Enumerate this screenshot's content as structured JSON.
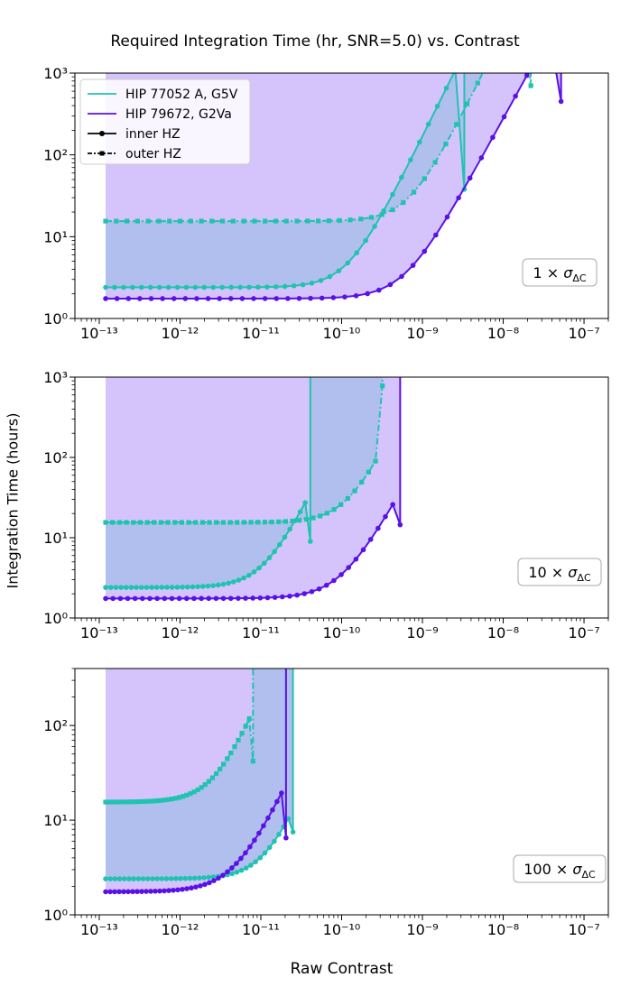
{
  "chart_data": {
    "type": "line",
    "title": "Required Integration Time (hr, SNR=5.0) vs. Contrast",
    "xlabel": "Raw Contrast",
    "ylabel": "Integration Time (hours)",
    "xscale": "log",
    "yscale": "log",
    "xlim": [
      5e-14,
      2e-07
    ],
    "xticks": [
      1e-13,
      1e-12,
      1e-11,
      1e-10,
      1e-09,
      1e-08,
      1e-07
    ],
    "xtick_labels": [
      "10⁻¹³",
      "10⁻¹²",
      "10⁻¹¹",
      "10⁻¹⁰",
      "10⁻⁹",
      "10⁻⁸",
      "10⁻⁷"
    ],
    "legend": {
      "placement": "top-left",
      "entries": [
        {
          "label": "HIP 77052 A, G5V",
          "color": "#20c3b0",
          "style": "solid"
        },
        {
          "label": "HIP 79672, G2Va",
          "color": "#5a10e8",
          "style": "solid"
        },
        {
          "label": "inner HZ",
          "color": "#000000",
          "style": "solid-dot"
        },
        {
          "label": "outer HZ",
          "color": "#000000",
          "style": "dashdot-square"
        }
      ]
    },
    "fill_colors": {
      "HIP 79672, G2Va": "#d5c4fb",
      "HIP 77052 A, G5V": "#b0bfee"
    },
    "panels": [
      {
        "annotation_value": "1",
        "ylim": [
          1,
          1000
        ],
        "yticks": [
          1,
          10,
          100,
          1000
        ],
        "ytick_labels": [
          "10⁰",
          "10¹",
          "10²",
          "10³"
        ],
        "series": [
          {
            "star": "HIP 77052 A, G5V",
            "zone": "inner HZ",
            "color": "#20c3b0",
            "base": 2.4,
            "c_onset": 1.2e-10,
            "exp": 2.0,
            "x_end": 3.3e-09,
            "y_end": 38,
            "vertical": true
          },
          {
            "star": "HIP 77052 A, G5V",
            "zone": "outer HZ",
            "color": "#20c3b0",
            "base": 15.5,
            "c_onset": 7e-10,
            "exp": 2.0,
            "x_end": 2.2e-08,
            "y_end": 700,
            "vertical": true
          },
          {
            "star": "HIP 79672, G2Va",
            "zone": "inner HZ",
            "color": "#5a10e8",
            "base": 1.75,
            "c_onset": 6e-10,
            "exp": 1.8,
            "x_end": 5.2e-08,
            "y_end": 450,
            "vertical": true
          }
        ]
      },
      {
        "annotation_value": "10",
        "ylim": [
          1,
          1000
        ],
        "yticks": [
          1,
          10,
          100,
          1000
        ],
        "ytick_labels": [
          "10⁰",
          "10¹",
          "10²",
          "10³"
        ],
        "series": [
          {
            "star": "HIP 77052 A, G5V",
            "zone": "inner HZ",
            "color": "#20c3b0",
            "base": 2.4,
            "c_onset": 1.1e-11,
            "exp": 2.0,
            "x_end": 4.1e-11,
            "y_end": 9,
            "vertical": true
          },
          {
            "star": "HIP 77052 A, G5V",
            "zone": "outer HZ",
            "color": "#20c3b0",
            "base": 15.5,
            "c_onset": 1.2e-10,
            "exp": 2.0,
            "x_end": 3.2e-10,
            "y_end": 780,
            "vertical": true
          },
          {
            "star": "HIP 79672, G2Va",
            "zone": "inner HZ",
            "color": "#5a10e8",
            "base": 1.75,
            "c_onset": 1e-10,
            "exp": 1.8,
            "x_end": 5.3e-10,
            "y_end": 14.5,
            "vertical": true
          }
        ]
      },
      {
        "annotation_value": "100",
        "ylim": [
          1,
          400
        ],
        "yticks": [
          1,
          10,
          100
        ],
        "ytick_labels": [
          "10⁰",
          "10¹",
          "10²"
        ],
        "series": [
          {
            "star": "HIP 77052 A, G5V",
            "zone": "inner HZ",
            "color": "#20c3b0",
            "base": 2.4,
            "c_onset": 1.2e-11,
            "exp": 2.0,
            "x_end": 2.5e-11,
            "y_end": 7.5,
            "vertical": true
          },
          {
            "star": "HIP 77052 A, G5V",
            "zone": "outer HZ",
            "color": "#20c3b0",
            "base": 15.5,
            "c_onset": 2.8e-12,
            "exp": 2.0,
            "x_end": 8e-12,
            "y_end": 42,
            "vertical": true
          },
          {
            "star": "HIP 79672, G2Va",
            "zone": "inner HZ",
            "color": "#5a10e8",
            "base": 1.75,
            "c_onset": 5e-12,
            "exp": 1.8,
            "x_end": 2.05e-11,
            "y_end": 6.5,
            "vertical": true
          }
        ]
      }
    ]
  }
}
